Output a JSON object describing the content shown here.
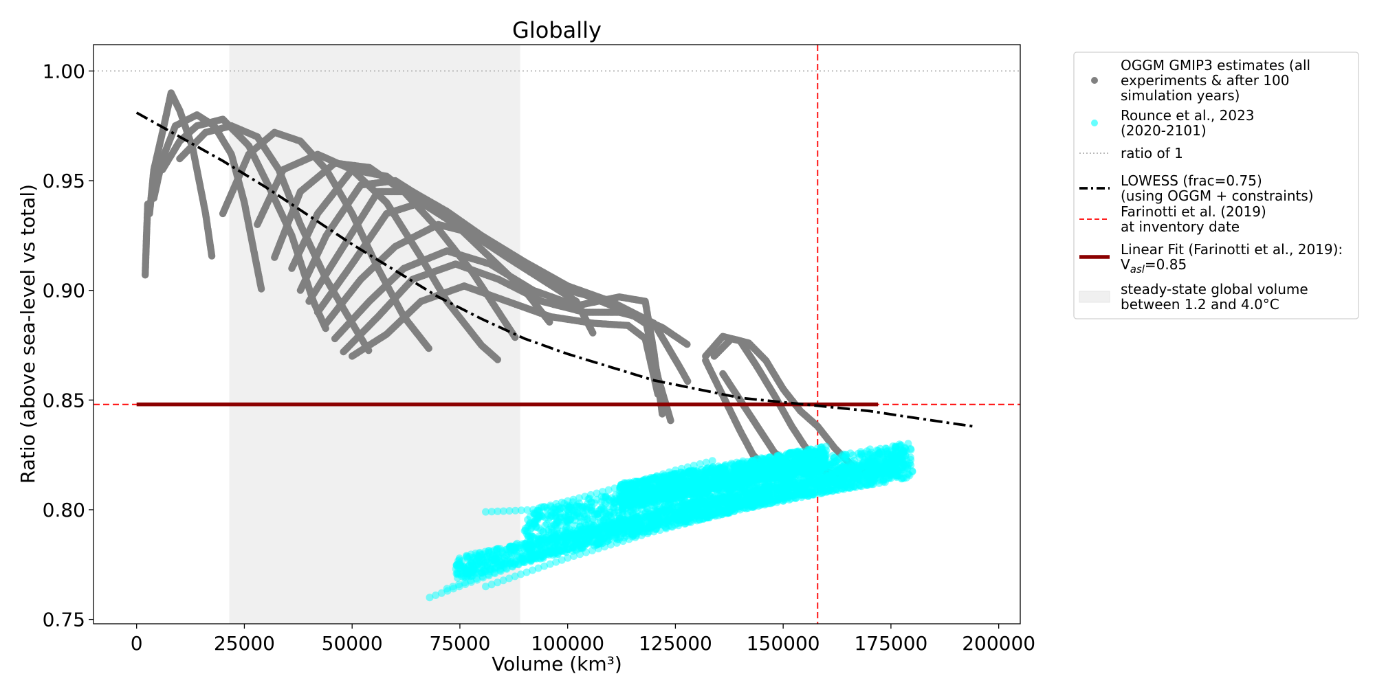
{
  "chart_data": {
    "type": "scatter",
    "title": "Globally",
    "xlabel": "Volume (km³)",
    "ylabel": "Ratio (above sea-level vs total)",
    "xlim": [
      -10000,
      205000
    ],
    "ylim": [
      0.748,
      1.012
    ],
    "x_ticks": [
      0,
      25000,
      50000,
      75000,
      100000,
      125000,
      150000,
      175000,
      200000
    ],
    "y_ticks": [
      0.75,
      0.8,
      0.85,
      0.9,
      0.95,
      1.0
    ],
    "x_tick_labels": [
      "0",
      "25000",
      "50000",
      "75000",
      "100000",
      "125000",
      "150000",
      "175000",
      "200000"
    ],
    "y_tick_labels": [
      "0.75",
      "0.80",
      "0.85",
      "0.90",
      "0.95",
      "1.00"
    ],
    "grid": false,
    "legend_position": "outside-right",
    "shaded_region": {
      "x0": 21500,
      "x1": 89000,
      "color": "#f0f0f0"
    },
    "farinotti_volume": 158000,
    "farinotti_ratio": 0.848,
    "ratio_of_one": 1.0,
    "linear_fit": {
      "x": [
        0,
        172000
      ],
      "y": [
        0.848,
        0.848
      ],
      "color": "#8b0000"
    },
    "lowess": {
      "x": [
        0,
        10000,
        20000,
        30000,
        40000,
        50000,
        60000,
        70000,
        80000,
        90000,
        100000,
        110000,
        120000,
        130000,
        140000,
        150000,
        160000,
        170000,
        180000,
        194000
      ],
      "y": [
        0.981,
        0.97,
        0.959,
        0.947,
        0.934,
        0.921,
        0.909,
        0.897,
        0.887,
        0.878,
        0.871,
        0.865,
        0.859,
        0.855,
        0.851,
        0.849,
        0.847,
        0.845,
        0.842,
        0.838
      ],
      "color": "#000000"
    },
    "series": [
      {
        "name": "OGGM GMIP3 estimates (all experiments & after 100 simulation years)",
        "color": "#808080",
        "curves": [
          [
            [
              2000,
              0.907
            ],
            [
              2300,
              0.925
            ],
            [
              2600,
              0.94
            ]
          ],
          [
            [
              3000,
              0.935
            ],
            [
              4000,
              0.955
            ],
            [
              6000,
              0.972
            ],
            [
              8000,
              0.99
            ],
            [
              10000,
              0.982
            ],
            [
              13000,
              0.965
            ],
            [
              16000,
              0.935
            ],
            [
              17500,
              0.915
            ]
          ],
          [
            [
              4000,
              0.942
            ],
            [
              6000,
              0.96
            ],
            [
              9000,
              0.975
            ],
            [
              14000,
              0.98
            ],
            [
              18000,
              0.975
            ],
            [
              22000,
              0.962
            ],
            [
              25000,
              0.94
            ],
            [
              29000,
              0.9
            ]
          ],
          [
            [
              6000,
              0.955
            ],
            [
              10000,
              0.968
            ],
            [
              14000,
              0.975
            ],
            [
              20000,
              0.978
            ],
            [
              26000,
              0.966
            ],
            [
              31000,
              0.946
            ],
            [
              36000,
              0.925
            ],
            [
              41000,
              0.895
            ],
            [
              44000,
              0.882
            ]
          ],
          [
            [
              10000,
              0.96
            ],
            [
              16000,
              0.972
            ],
            [
              22000,
              0.975
            ],
            [
              28000,
              0.97
            ],
            [
              33000,
              0.955
            ],
            [
              38000,
              0.93
            ],
            [
              44000,
              0.905
            ],
            [
              50000,
              0.885
            ],
            [
              54000,
              0.872
            ]
          ],
          [
            [
              20000,
              0.935
            ],
            [
              26000,
              0.962
            ],
            [
              32000,
              0.972
            ],
            [
              38000,
              0.968
            ],
            [
              44000,
              0.955
            ],
            [
              50000,
              0.935
            ],
            [
              56000,
              0.91
            ],
            [
              62000,
              0.888
            ],
            [
              68000,
              0.873
            ]
          ],
          [
            [
              28000,
              0.93
            ],
            [
              34000,
              0.955
            ],
            [
              42000,
              0.962
            ],
            [
              50000,
              0.955
            ],
            [
              58000,
              0.94
            ],
            [
              66000,
              0.915
            ],
            [
              72000,
              0.895
            ],
            [
              80000,
              0.875
            ],
            [
              84000,
              0.868
            ]
          ],
          [
            [
              32000,
              0.915
            ],
            [
              38000,
              0.945
            ],
            [
              46000,
              0.958
            ],
            [
              54000,
              0.956
            ],
            [
              62000,
              0.945
            ],
            [
              70000,
              0.928
            ],
            [
              78000,
              0.908
            ],
            [
              84000,
              0.89
            ],
            [
              88000,
              0.878
            ]
          ],
          [
            [
              36000,
              0.91
            ],
            [
              42000,
              0.935
            ],
            [
              50000,
              0.955
            ],
            [
              58000,
              0.952
            ],
            [
              66000,
              0.94
            ],
            [
              74000,
              0.93
            ],
            [
              82000,
              0.915
            ],
            [
              90000,
              0.9
            ],
            [
              96000,
              0.885
            ]
          ],
          [
            [
              38000,
              0.9
            ],
            [
              44000,
              0.925
            ],
            [
              52000,
              0.948
            ],
            [
              60000,
              0.95
            ],
            [
              68000,
              0.94
            ],
            [
              76000,
              0.928
            ],
            [
              86000,
              0.915
            ],
            [
              94000,
              0.905
            ],
            [
              102000,
              0.895
            ],
            [
              106000,
              0.88
            ]
          ],
          [
            [
              40000,
              0.895
            ],
            [
              48000,
              0.92
            ],
            [
              56000,
              0.945
            ],
            [
              64000,
              0.945
            ],
            [
              72000,
              0.936
            ],
            [
              80000,
              0.925
            ],
            [
              90000,
              0.91
            ],
            [
              100000,
              0.9
            ],
            [
              110000,
              0.895
            ],
            [
              118000,
              0.885
            ]
          ],
          [
            [
              42000,
              0.89
            ],
            [
              50000,
              0.912
            ],
            [
              58000,
              0.935
            ],
            [
              66000,
              0.94
            ],
            [
              74000,
              0.932
            ],
            [
              84000,
              0.92
            ],
            [
              94000,
              0.907
            ],
            [
              104000,
              0.898
            ],
            [
              114000,
              0.89
            ],
            [
              122000,
              0.883
            ],
            [
              128000,
              0.875
            ]
          ],
          [
            [
              44000,
              0.885
            ],
            [
              52000,
              0.905
            ],
            [
              60000,
              0.92
            ],
            [
              70000,
              0.93
            ],
            [
              80000,
              0.925
            ],
            [
              90000,
              0.913
            ],
            [
              100000,
              0.902
            ],
            [
              110000,
              0.895
            ],
            [
              120000,
              0.885
            ],
            [
              126000,
              0.865
            ],
            [
              128000,
              0.858
            ]
          ],
          [
            [
              46000,
              0.878
            ],
            [
              54000,
              0.895
            ],
            [
              62000,
              0.91
            ],
            [
              72000,
              0.918
            ],
            [
              82000,
              0.912
            ],
            [
              92000,
              0.9
            ],
            [
              102000,
              0.893
            ],
            [
              112000,
              0.897
            ],
            [
              118000,
              0.895
            ],
            [
              120000,
              0.872
            ],
            [
              122000,
              0.843
            ]
          ],
          [
            [
              48000,
              0.872
            ],
            [
              56000,
              0.888
            ],
            [
              64000,
              0.905
            ],
            [
              74000,
              0.912
            ],
            [
              84000,
              0.905
            ],
            [
              94000,
              0.895
            ],
            [
              104000,
              0.89
            ],
            [
              112000,
              0.89
            ],
            [
              118000,
              0.887
            ],
            [
              121000,
              0.86
            ],
            [
              124000,
              0.84
            ]
          ],
          [
            [
              50000,
              0.87
            ],
            [
              58000,
              0.88
            ],
            [
              66000,
              0.895
            ],
            [
              76000,
              0.902
            ],
            [
              86000,
              0.895
            ],
            [
              96000,
              0.888
            ],
            [
              106000,
              0.885
            ],
            [
              114000,
              0.884
            ],
            [
              118000,
              0.878
            ],
            [
              121000,
              0.852
            ]
          ],
          [
            [
              134000,
              0.87
            ],
            [
              138000,
              0.878
            ],
            [
              142000,
              0.876
            ],
            [
              146000,
              0.868
            ],
            [
              150000,
              0.855
            ],
            [
              154000,
              0.845
            ],
            [
              158000,
              0.838
            ],
            [
              162000,
              0.828
            ],
            [
              166000,
              0.82
            ],
            [
              170000,
              0.816
            ],
            [
              172000,
              0.816
            ]
          ],
          [
            [
              132000,
              0.87
            ],
            [
              136000,
              0.879
            ],
            [
              140000,
              0.877
            ],
            [
              144000,
              0.865
            ],
            [
              148000,
              0.852
            ],
            [
              152000,
              0.838
            ],
            [
              156000,
              0.826
            ],
            [
              159000,
              0.818
            ],
            [
              162000,
              0.816
            ],
            [
              165000,
              0.818
            ]
          ],
          [
            [
              132000,
              0.868
            ],
            [
              134000,
              0.86
            ],
            [
              137000,
              0.848
            ],
            [
              140000,
              0.836
            ],
            [
              143000,
              0.825
            ],
            [
              145000,
              0.821
            ]
          ],
          [
            [
              136000,
              0.862
            ],
            [
              140000,
              0.85
            ],
            [
              144000,
              0.838
            ],
            [
              148000,
              0.826
            ],
            [
              152000,
              0.82
            ]
          ]
        ]
      },
      {
        "name": "Rounce et al., 2023 (2020-2101)",
        "color": "#00ffff",
        "bands": [
          {
            "x0": 90000,
            "x1": 180000,
            "y_start_low": 0.782,
            "y_start_high": 0.8,
            "y_end_low": 0.815,
            "y_end_high": 0.831
          },
          {
            "x0": 74000,
            "x1": 178000,
            "y_start_low": 0.768,
            "y_start_high": 0.778,
            "y_end_low": 0.818,
            "y_end_high": 0.826
          },
          {
            "x0": 112000,
            "x1": 160000,
            "y_start_low": 0.8,
            "y_start_high": 0.812,
            "y_end_low": 0.818,
            "y_end_high": 0.829
          }
        ],
        "lines": [
          [
            [
              81000,
              0.799
            ],
            [
              92000,
              0.8
            ],
            [
              104000,
              0.806
            ],
            [
              115000,
              0.812
            ],
            [
              125000,
              0.818
            ],
            [
              135000,
              0.823
            ]
          ],
          [
            [
              68000,
              0.76
            ],
            [
              90000,
              0.776
            ],
            [
              110000,
              0.788
            ],
            [
              130000,
              0.797
            ],
            [
              150000,
              0.806
            ],
            [
              165000,
              0.81
            ],
            [
              176000,
              0.815
            ]
          ],
          [
            [
              81000,
              0.765
            ],
            [
              100000,
              0.778
            ],
            [
              120000,
              0.79
            ],
            [
              140000,
              0.8
            ],
            [
              160000,
              0.808
            ],
            [
              175000,
              0.813
            ]
          ],
          [
            [
              78000,
              0.77
            ],
            [
              98000,
              0.783
            ],
            [
              118000,
              0.795
            ],
            [
              138000,
              0.805
            ],
            [
              158000,
              0.812
            ],
            [
              178000,
              0.818
            ]
          ],
          [
            [
              72000,
              0.764
            ],
            [
              94000,
              0.779
            ],
            [
              114000,
              0.79
            ],
            [
              134000,
              0.8
            ],
            [
              154000,
              0.807
            ],
            [
              172000,
              0.812
            ]
          ]
        ]
      }
    ],
    "legend": [
      {
        "kind": "marker",
        "color": "#808080",
        "lines": [
          "OGGM GMIP3 estimates (all",
          "experiments & after 100",
          "simulation years)"
        ]
      },
      {
        "kind": "marker",
        "color": "#00ffff",
        "lines": [
          "Rounce et al., 2023",
          "(2020-2101)"
        ]
      },
      {
        "kind": "dotted",
        "color": "#b0b0b0",
        "lines": [
          "ratio of 1"
        ]
      },
      {
        "kind": "dashdot",
        "color": "#000000",
        "lines": [
          "LOWESS (frac=0.75)",
          "(using OGGM + constraints)"
        ]
      },
      {
        "kind": "dashed",
        "color": "#ff0000",
        "lines": [
          "Farinotti et al. (2019)",
          "at inventory date"
        ]
      },
      {
        "kind": "thick",
        "color": "#8b0000",
        "lines": [
          "Linear Fit (Farinotti et al., 2019):",
          "V_asl=0.85"
        ]
      },
      {
        "kind": "patch",
        "color": "#f0f0f0",
        "lines": [
          "steady-state global volume",
          "between 1.2 and 4.0°C"
        ]
      }
    ]
  }
}
